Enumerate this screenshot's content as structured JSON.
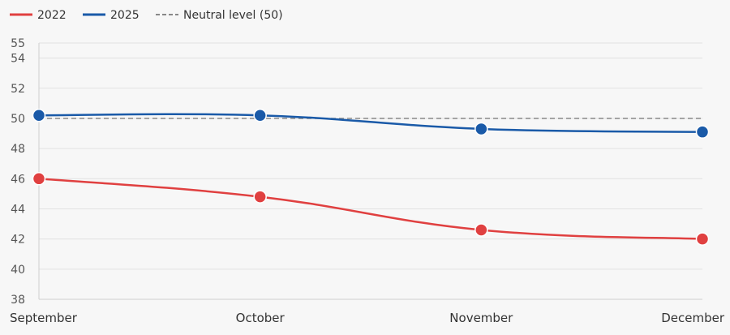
{
  "chart_data": {
    "type": "line",
    "title": "",
    "xlabel": "",
    "ylabel": "",
    "categories": [
      "September",
      "October",
      "November",
      "December"
    ],
    "series": [
      {
        "name": "2022",
        "color": "#e04040",
        "values": [
          46.0,
          44.8,
          42.6,
          42.0
        ]
      },
      {
        "name": "2025",
        "color": "#1a5aa8",
        "values": [
          50.2,
          50.2,
          49.3,
          49.1
        ]
      }
    ],
    "reference_line": {
      "name": "Neutral level (50)",
      "value": 50,
      "color": "#888888",
      "style": "dashed"
    },
    "ylim": [
      38,
      55
    ],
    "yticks": [
      38,
      40,
      42,
      44,
      46,
      48,
      50,
      52,
      54,
      55
    ],
    "grid": true,
    "legend_position": "top-left"
  }
}
